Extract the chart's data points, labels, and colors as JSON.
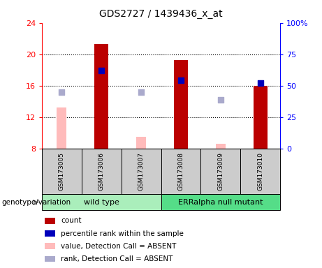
{
  "title": "GDS2727 / 1439436_x_at",
  "samples": [
    "GSM173005",
    "GSM173006",
    "GSM173007",
    "GSM173008",
    "GSM173009",
    "GSM173010"
  ],
  "ylim_left": [
    8,
    24
  ],
  "ylim_right": [
    0,
    100
  ],
  "yticks_left": [
    8,
    12,
    16,
    20,
    24
  ],
  "yticks_right": [
    0,
    25,
    50,
    75,
    100
  ],
  "ytick_labels_right": [
    "0",
    "25",
    "50",
    "75",
    "100%"
  ],
  "red_bars": [
    null,
    21.3,
    null,
    19.3,
    null,
    16.0
  ],
  "pink_bars": [
    13.2,
    null,
    9.5,
    null,
    8.6,
    null
  ],
  "blue_squares_y": [
    null,
    17.9,
    null,
    16.7,
    null,
    16.35
  ],
  "lavender_squares_y": [
    15.2,
    null,
    15.2,
    null,
    14.2,
    null
  ],
  "red_bar_color": "#bb0000",
  "pink_bar_color": "#ffbbbb",
  "blue_sq_color": "#0000bb",
  "lavender_sq_color": "#aaaacc",
  "bar_width": 0.35,
  "pink_bar_width": 0.25,
  "sq_size": 40,
  "group_box_color": "#cccccc",
  "group_wt_color": "#aaeebb",
  "group_mut_color": "#55dd88",
  "legend_items": [
    {
      "label": "count",
      "color": "#bb0000"
    },
    {
      "label": "percentile rank within the sample",
      "color": "#0000bb"
    },
    {
      "label": "value, Detection Call = ABSENT",
      "color": "#ffbbbb"
    },
    {
      "label": "rank, Detection Call = ABSENT",
      "color": "#aaaacc"
    }
  ]
}
